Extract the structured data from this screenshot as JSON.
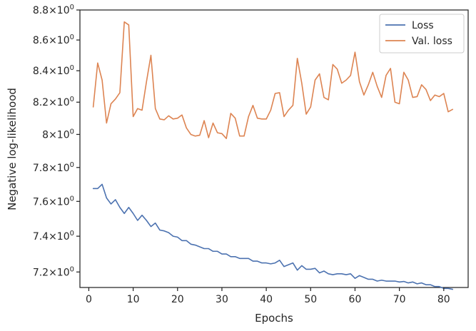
{
  "chart_data": {
    "type": "line",
    "xlabel": "Epochs",
    "ylabel": "Negative log-likelihood",
    "xlim": [
      -2,
      85.5
    ],
    "ylim": [
      7.115,
      8.8
    ],
    "yscale": "log",
    "grid": false,
    "legend": "top-right",
    "xticks": [
      0,
      10,
      20,
      30,
      40,
      50,
      60,
      70,
      80
    ],
    "xtick_labels": [
      "0",
      "10",
      "20",
      "30",
      "40",
      "50",
      "60",
      "70",
      "80"
    ],
    "yticks": [
      7.2,
      7.4,
      7.6,
      7.8,
      8.0,
      8.2,
      8.4,
      8.6,
      8.8
    ],
    "ytick_labels": [
      {
        "base": "7.2",
        "pre": "×10",
        "exp": "0"
      },
      {
        "base": "7.4",
        "pre": "×10",
        "exp": "0"
      },
      {
        "base": "7.6",
        "pre": "×10",
        "exp": "0"
      },
      {
        "base": "7.8",
        "pre": "×10",
        "exp": "0"
      },
      {
        "base": "8",
        "pre": "×10",
        "exp": "0"
      },
      {
        "base": "8.2",
        "pre": "×10",
        "exp": "0"
      },
      {
        "base": "8.4",
        "pre": "×10",
        "exp": "0"
      },
      {
        "base": "8.6",
        "pre": "×10",
        "exp": "0"
      },
      {
        "base": "8.8",
        "pre": "×10",
        "exp": "0"
      }
    ],
    "series": [
      {
        "name": "Loss",
        "color": "#4c72b0",
        "x": [
          1,
          2,
          3,
          4,
          5,
          6,
          7,
          8,
          9,
          10,
          11,
          12,
          13,
          14,
          15,
          16,
          17,
          18,
          19,
          20,
          21,
          22,
          23,
          24,
          25,
          26,
          27,
          28,
          29,
          30,
          31,
          32,
          33,
          34,
          35,
          36,
          37,
          38,
          39,
          40,
          41,
          42,
          43,
          44,
          45,
          46,
          47,
          48,
          49,
          50,
          51,
          52,
          53,
          54,
          55,
          56,
          57,
          58,
          59,
          60,
          61,
          62,
          63,
          64,
          65,
          66,
          67,
          68,
          69,
          70,
          71,
          72,
          73,
          74,
          75,
          76,
          77,
          78,
          79,
          80,
          81,
          82
        ],
        "y": [
          7.675,
          7.675,
          7.7,
          7.62,
          7.585,
          7.61,
          7.565,
          7.53,
          7.565,
          7.53,
          7.49,
          7.52,
          7.49,
          7.455,
          7.475,
          7.435,
          7.43,
          7.42,
          7.4,
          7.395,
          7.375,
          7.375,
          7.355,
          7.35,
          7.34,
          7.33,
          7.33,
          7.315,
          7.315,
          7.3,
          7.3,
          7.285,
          7.285,
          7.275,
          7.275,
          7.275,
          7.26,
          7.26,
          7.25,
          7.25,
          7.245,
          7.25,
          7.265,
          7.23,
          7.24,
          7.25,
          7.21,
          7.235,
          7.215,
          7.215,
          7.22,
          7.195,
          7.205,
          7.19,
          7.185,
          7.19,
          7.19,
          7.185,
          7.19,
          7.165,
          7.18,
          7.17,
          7.16,
          7.16,
          7.15,
          7.155,
          7.15,
          7.15,
          7.15,
          7.145,
          7.148,
          7.14,
          7.145,
          7.135,
          7.14,
          7.13,
          7.13,
          7.12,
          7.12,
          7.11,
          7.11,
          7.105
        ]
      },
      {
        "name": "Val. loss",
        "color": "#dd8452",
        "x": [
          1,
          2,
          3,
          4,
          5,
          6,
          7,
          8,
          9,
          10,
          11,
          12,
          13,
          14,
          15,
          16,
          17,
          18,
          19,
          20,
          21,
          22,
          23,
          24,
          25,
          26,
          27,
          28,
          29,
          30,
          31,
          32,
          33,
          34,
          35,
          36,
          37,
          38,
          39,
          40,
          41,
          42,
          43,
          44,
          45,
          46,
          47,
          48,
          49,
          50,
          51,
          52,
          53,
          54,
          55,
          56,
          57,
          58,
          59,
          60,
          61,
          62,
          63,
          64,
          65,
          66,
          67,
          68,
          69,
          70,
          71,
          72,
          73,
          74,
          75,
          76,
          77,
          78,
          79,
          80,
          81,
          82
        ],
        "y": [
          8.17,
          8.45,
          8.34,
          8.07,
          8.19,
          8.22,
          8.26,
          8.72,
          8.7,
          8.11,
          8.16,
          8.15,
          8.33,
          8.5,
          8.16,
          8.095,
          8.09,
          8.115,
          8.095,
          8.1,
          8.12,
          8.04,
          8.0,
          7.99,
          7.995,
          8.085,
          7.98,
          8.07,
          8.01,
          8.005,
          7.975,
          8.13,
          8.1,
          7.99,
          7.99,
          8.11,
          8.18,
          8.1,
          8.095,
          8.095,
          8.15,
          8.255,
          8.26,
          8.11,
          8.15,
          8.18,
          8.48,
          8.32,
          8.125,
          8.17,
          8.34,
          8.38,
          8.23,
          8.215,
          8.44,
          8.41,
          8.32,
          8.34,
          8.37,
          8.52,
          8.33,
          8.245,
          8.31,
          8.39,
          8.3,
          8.23,
          8.37,
          8.415,
          8.2,
          8.19,
          8.39,
          8.34,
          8.23,
          8.235,
          8.31,
          8.28,
          8.21,
          8.245,
          8.235,
          8.255,
          8.14,
          8.155
        ]
      }
    ]
  }
}
